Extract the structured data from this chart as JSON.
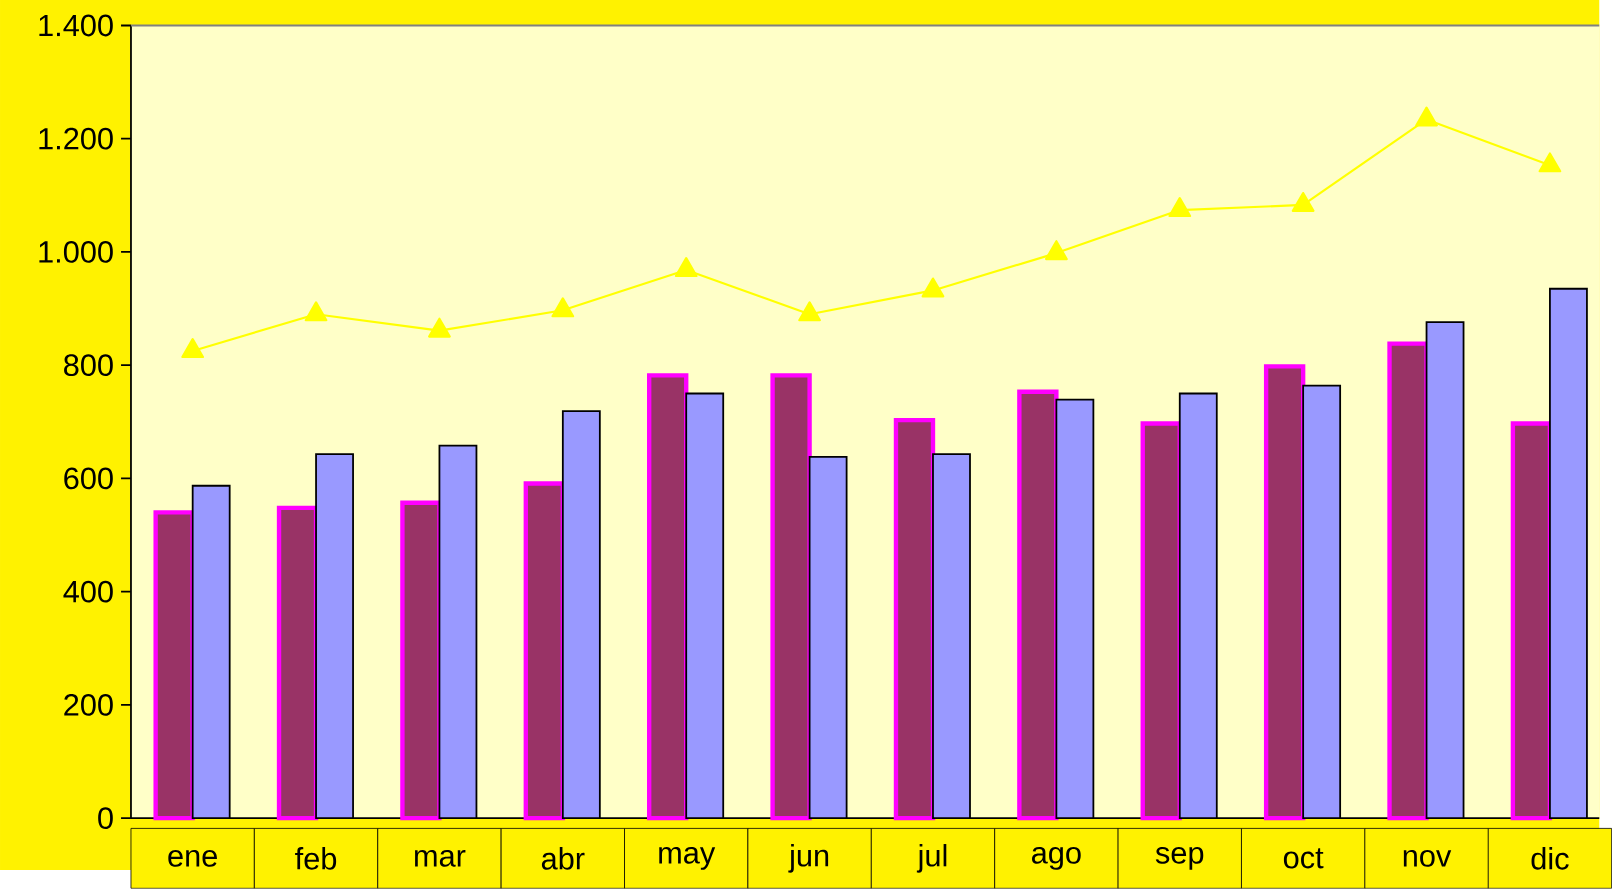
{
  "chart_data": {
    "type": "bar",
    "categories": [
      "ene",
      "feb",
      "mar",
      "abr",
      "may",
      "jun",
      "jul",
      "ago",
      "sep",
      "oct",
      "nov",
      "dic"
    ],
    "series": [
      {
        "color": "#993366",
        "values": [
          540,
          548,
          557,
          591,
          782,
          782,
          703,
          753,
          697,
          798,
          838,
          697
        ]
      },
      {
        "color": "#9999ff",
        "values": [
          587,
          643,
          658,
          719,
          750,
          638,
          643,
          739,
          750,
          764,
          876,
          935
        ]
      },
      {
        "type": "line",
        "color": "#ffff00",
        "values": [
          825,
          890,
          861,
          897,
          968,
          890,
          932,
          998,
          1074,
          1083,
          1234,
          1153
        ]
      }
    ],
    "ylim": [
      0,
      1400
    ],
    "yticks": [
      0,
      200,
      400,
      600,
      800,
      {
        "value": 1000,
        "label": "1.000"
      },
      {
        "value": 1200,
        "label": "1.200"
      },
      {
        "value": 1400,
        "label": "1.400"
      }
    ],
    "marker": "triangle"
  }
}
